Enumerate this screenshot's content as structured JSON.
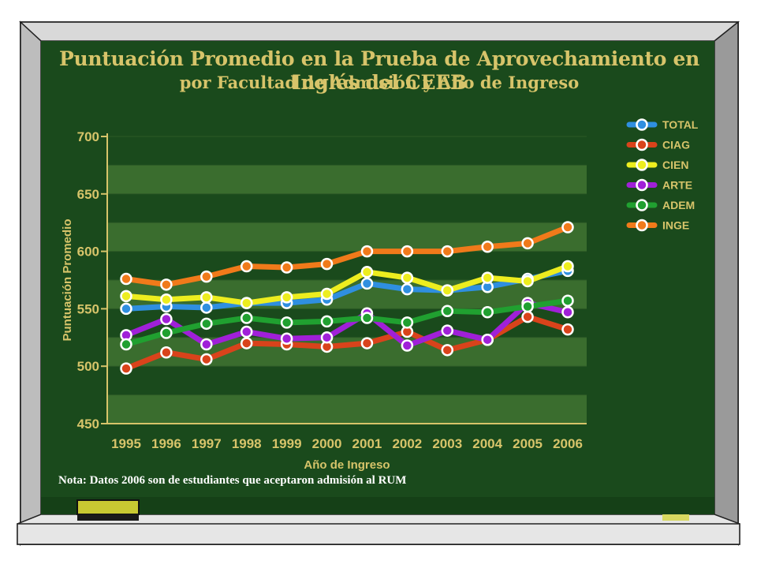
{
  "slide": {
    "note": "Nota:  Datos 2006 son de estudiantes que aceptaron admisión al RUM"
  },
  "colors": {
    "board_green": "#1a4a1c",
    "band_green": "#3a6d2e",
    "text_gold": "#d7c46a",
    "accent_yellow": "#c8c832"
  },
  "chart_data": {
    "type": "line",
    "title": "Puntuación Promedio en la Prueba de Aprovechamiento en Inglés del CEEB",
    "subtitle": "por Facultad de Admisión y Año de Ingreso",
    "xlabel": "Año de Ingreso",
    "ylabel": "Puntuación Promedio",
    "ylim": [
      450,
      700
    ],
    "yticks": [
      "450",
      "500",
      "550",
      "600",
      "650",
      "700"
    ],
    "categories": [
      "1995",
      "1996",
      "1997",
      "1998",
      "1999",
      "2000",
      "2001",
      "2002",
      "2003",
      "2004",
      "2005",
      "2006"
    ],
    "grid": true,
    "legend_position": "right",
    "series": [
      {
        "name": "TOTAL",
        "color": "#2f8fe0",
        "values": [
          550,
          552,
          551,
          555,
          555,
          558,
          572,
          567,
          566,
          569,
          576,
          583
        ]
      },
      {
        "name": "CIAG",
        "color": "#d9431b",
        "values": [
          498,
          512,
          506,
          520,
          519,
          517,
          520,
          530,
          514,
          523,
          543,
          532
        ]
      },
      {
        "name": "CIEN",
        "color": "#eded1f",
        "values": [
          561,
          558,
          560,
          555,
          560,
          563,
          582,
          577,
          566,
          577,
          574,
          587
        ]
      },
      {
        "name": "ARTE",
        "color": "#a020d8",
        "values": [
          527,
          541,
          519,
          530,
          524,
          525,
          546,
          518,
          531,
          523,
          555,
          547
        ]
      },
      {
        "name": "ADEM",
        "color": "#20a030",
        "values": [
          519,
          529,
          537,
          542,
          538,
          539,
          542,
          538,
          548,
          547,
          552,
          557
        ]
      },
      {
        "name": "INGE",
        "color": "#f07a1a",
        "values": [
          576,
          571,
          578,
          587,
          586,
          589,
          600,
          600,
          600,
          604,
          607,
          621
        ]
      }
    ]
  }
}
